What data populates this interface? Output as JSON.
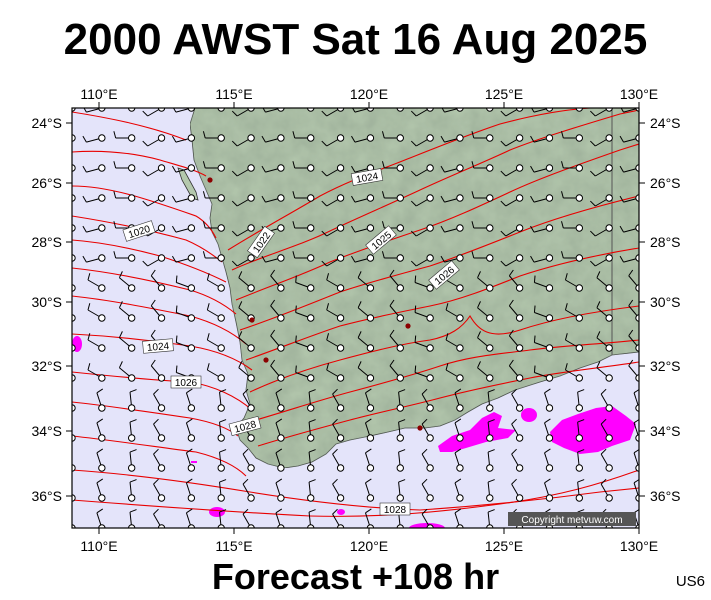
{
  "title": "2000 AWST Sat 16 Aug 2025",
  "subtitle": "Forecast +108 hr",
  "model_code": "US6",
  "copyright": "Copyright metvuw.com",
  "map": {
    "lon_range": [
      109,
      130
    ],
    "lat_range": [
      -37,
      -23.6
    ],
    "lon_ticks": [
      "110°E",
      "115°E",
      "120°E",
      "125°E",
      "130°E"
    ],
    "lat_ticks": [
      "24°S",
      "26°S",
      "28°S",
      "30°S",
      "32°S",
      "34°S",
      "36°S"
    ],
    "isobar_labels": [
      "1024",
      "1020",
      "1022",
      "1025",
      "1026",
      "1024",
      "1026",
      "1028",
      "1028"
    ],
    "colors": {
      "ocean": "#e4e4fa",
      "land": "#b4c8ad",
      "isobar": "#e80000",
      "rain": "#ff00ff",
      "wind_barb": "#000000",
      "copyright_bg": "#555555"
    }
  }
}
